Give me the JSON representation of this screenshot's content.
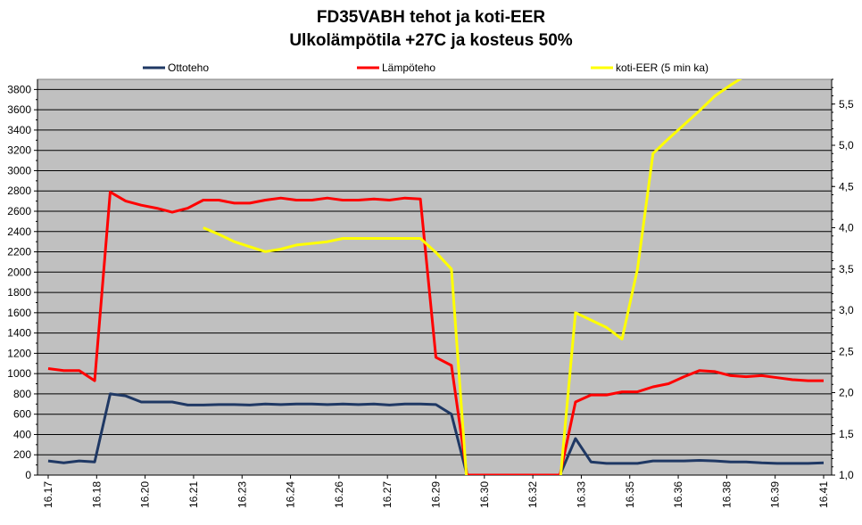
{
  "chart_data": {
    "type": "line",
    "title": "FD35VABH  tehot ja koti-EER",
    "subtitle": "Ulkolämpötila  +27C ja kosteus 50%",
    "x_tick_labels": [
      "16.17",
      "16.18",
      "16.20",
      "16.21",
      "16.23",
      "16.24",
      "16.26",
      "16.27",
      "16.29",
      "16.30",
      "16.32",
      "16.33",
      "16.35",
      "16.36",
      "16.38",
      "16.39",
      "16.41"
    ],
    "y_left_ticks": [
      "0",
      "200",
      "400",
      "600",
      "800",
      "1000",
      "1200",
      "1400",
      "1600",
      "1800",
      "2000",
      "2200",
      "2400",
      "2600",
      "2800",
      "3000",
      "3200",
      "3400",
      "3600",
      "3800"
    ],
    "y_right_ticks": [
      "1,0",
      "1,5",
      "2,0",
      "2,5",
      "3,0",
      "3,5",
      "4,0",
      "4,5",
      "5,0",
      "5,5"
    ],
    "ylim_left": [
      0,
      3900
    ],
    "ylim_right": [
      1.0,
      5.8
    ],
    "grid": true,
    "legend_position": "top",
    "series": [
      {
        "name": "Ottoteho",
        "axis": "left",
        "color": "#1f3864",
        "values": [
          140,
          120,
          140,
          130,
          800,
          780,
          720,
          720,
          720,
          690,
          690,
          695,
          695,
          690,
          700,
          695,
          700,
          700,
          695,
          700,
          695,
          700,
          690,
          700,
          700,
          695,
          600,
          0,
          0,
          0,
          0,
          0,
          0,
          0,
          360,
          130,
          115,
          115,
          115,
          140,
          140,
          140,
          145,
          140,
          130,
          130,
          120,
          115,
          115,
          115,
          120
        ]
      },
      {
        "name": "Lämpöteho",
        "axis": "left",
        "color": "#ff0000",
        "values": [
          1050,
          1030,
          1030,
          930,
          2790,
          2700,
          2660,
          2630,
          2590,
          2630,
          2710,
          2710,
          2680,
          2680,
          2710,
          2730,
          2710,
          2710,
          2730,
          2710,
          2710,
          2720,
          2710,
          2730,
          2720,
          1160,
          1080,
          0,
          0,
          0,
          0,
          0,
          0,
          0,
          720,
          790,
          790,
          820,
          820,
          870,
          900,
          970,
          1030,
          1020,
          980,
          970,
          980,
          960,
          940,
          930,
          930
        ]
      },
      {
        "name": "koti-EER (5 min ka)",
        "axis": "right",
        "color": "#ffff00",
        "values": [
          null,
          null,
          null,
          null,
          null,
          null,
          null,
          null,
          null,
          null,
          4.0,
          3.92,
          3.83,
          3.77,
          3.71,
          3.74,
          3.79,
          3.81,
          3.83,
          3.87,
          3.87,
          3.87,
          3.87,
          3.87,
          3.87,
          3.7,
          3.5,
          0.9,
          null,
          null,
          null,
          null,
          null,
          0.9,
          2.97,
          2.88,
          2.79,
          2.65,
          3.5,
          4.9,
          5.08,
          5.25,
          5.42,
          5.6,
          5.73,
          5.85,
          null,
          null,
          null,
          null,
          null
        ]
      }
    ]
  }
}
